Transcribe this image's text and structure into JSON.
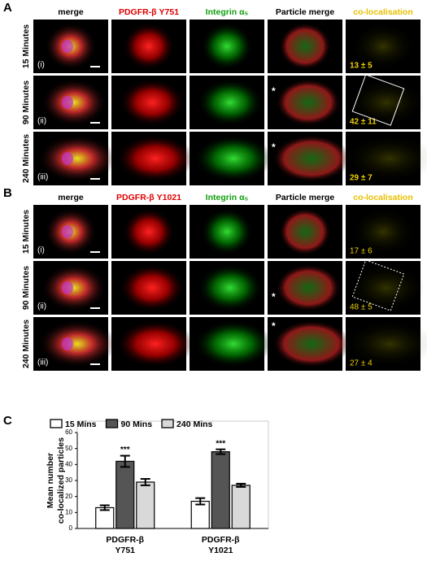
{
  "panels": [
    {
      "letter": "A",
      "columns": [
        {
          "text": "merge",
          "color": "#000000"
        },
        {
          "text": "PDGFR-β Y751",
          "color": "#e00000"
        },
        {
          "text": "Integrin α₅",
          "color": "#10a010"
        },
        {
          "text": "Particle merge",
          "color": "#000000"
        },
        {
          "text": "co-localisation",
          "color": "#e8c000"
        }
      ],
      "rows": [
        {
          "time": "15 Minutes",
          "index": "(i)",
          "colocalisation": "13 ± 5"
        },
        {
          "time": "90 Minutes",
          "index": "(ii)",
          "colocalisation": "42 ± 11",
          "asterisk": "*"
        },
        {
          "time": "240 Minutes",
          "index": "(iii)",
          "colocalisation": "29 ± 7",
          "asterisk": "*"
        }
      ]
    },
    {
      "letter": "B",
      "columns": [
        {
          "text": "merge",
          "color": "#000000"
        },
        {
          "text": "PDGFR-β Y1021",
          "color": "#e00000"
        },
        {
          "text": "Integrin α₅",
          "color": "#10a010"
        },
        {
          "text": "Particle merge",
          "color": "#000000"
        },
        {
          "text": "co-localisation",
          "color": "#e8c000"
        }
      ],
      "rows": [
        {
          "time": "15 Minutes",
          "index": "(i)",
          "colocalisation": "17 ± 6"
        },
        {
          "time": "90 Minutes",
          "index": "(ii)",
          "colocalisation": "48 ± 5",
          "asterisk": "*"
        },
        {
          "time": "240 Minutes",
          "index": "(iii)",
          "colocalisation": "27 ± 4",
          "asterisk": "*"
        }
      ]
    }
  ],
  "chart_data": {
    "type": "bar",
    "letter": "C",
    "ylabel": [
      "Mean number",
      "co-localized particles"
    ],
    "categories": [
      [
        "PDGFR-β",
        "Y751"
      ],
      [
        "PDGFR-β",
        "Y1021"
      ]
    ],
    "series": [
      {
        "name": "15 Mins",
        "color": "#ffffff",
        "values": [
          13,
          17
        ],
        "errors": [
          1.5,
          2
        ]
      },
      {
        "name": "90 Mins",
        "color": "#555555",
        "values": [
          42,
          48
        ],
        "errors": [
          3.5,
          1.5
        ],
        "significance": [
          "***",
          "***"
        ]
      },
      {
        "name": "240 Mins",
        "color": "#d9d9d9",
        "values": [
          29,
          27
        ],
        "errors": [
          2,
          1
        ]
      }
    ],
    "ylim": [
      0,
      60
    ],
    "yticks": [
      0,
      10,
      20,
      30,
      40,
      50,
      60
    ]
  }
}
